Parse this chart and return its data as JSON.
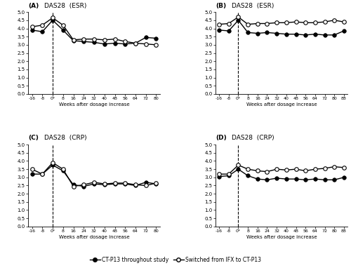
{
  "panel_A": {
    "title_label": "(A)",
    "title_rest": "  DAS28  (ESR)",
    "xticks": [
      -16,
      -8,
      0,
      8,
      16,
      24,
      32,
      40,
      48,
      56,
      64,
      72,
      80
    ],
    "xlabel": "Weeks after dosage increase",
    "ylim": [
      0,
      5
    ],
    "yticks": [
      0,
      0.5,
      1,
      1.5,
      2,
      2.5,
      3,
      3.5,
      4,
      4.5,
      5
    ],
    "solid_x": [
      -16,
      -8,
      0,
      8,
      16,
      24,
      32,
      40,
      48,
      56,
      64,
      72,
      80
    ],
    "solid_y": [
      3.9,
      3.8,
      4.5,
      3.9,
      3.25,
      3.2,
      3.15,
      3.05,
      3.1,
      3.05,
      3.1,
      3.45,
      3.4
    ],
    "open_x": [
      -16,
      -8,
      0,
      8,
      16,
      24,
      32,
      40,
      48,
      56,
      64,
      72,
      80
    ],
    "open_y": [
      4.1,
      4.2,
      4.65,
      4.2,
      3.3,
      3.35,
      3.35,
      3.3,
      3.35,
      3.2,
      3.1,
      3.05,
      3.0
    ]
  },
  "panel_B": {
    "title_label": "(B)",
    "title_rest": "  DAS28  (ESR)",
    "xticks": [
      -16,
      -8,
      0,
      8,
      16,
      24,
      32,
      40,
      48,
      56,
      64,
      72,
      80,
      88
    ],
    "xlabel": "Weeks after dosage increase",
    "ylim": [
      0,
      5
    ],
    "yticks": [
      0,
      0.5,
      1,
      1.5,
      2,
      2.5,
      3,
      3.5,
      4,
      4.5,
      5
    ],
    "solid_x": [
      -16,
      -8,
      0,
      8,
      16,
      24,
      32,
      40,
      48,
      56,
      64,
      72,
      80,
      88
    ],
    "solid_y": [
      3.9,
      3.85,
      4.5,
      3.75,
      3.7,
      3.75,
      3.7,
      3.65,
      3.65,
      3.6,
      3.65,
      3.6,
      3.6,
      3.85
    ],
    "open_x": [
      -16,
      -8,
      0,
      8,
      16,
      24,
      32,
      40,
      48,
      56,
      64,
      72,
      80,
      88
    ],
    "open_y": [
      4.25,
      4.3,
      4.7,
      4.25,
      4.3,
      4.3,
      4.35,
      4.35,
      4.4,
      4.35,
      4.35,
      4.4,
      4.5,
      4.4
    ]
  },
  "panel_C": {
    "title_label": "(C)",
    "title_rest": "  DAS28  (CRP)",
    "xticks": [
      -16,
      -8,
      0,
      8,
      16,
      24,
      32,
      40,
      48,
      56,
      64,
      72,
      80
    ],
    "xlabel": "Weeks after dosage increase",
    "ylim": [
      0,
      5
    ],
    "yticks": [
      0,
      0.5,
      1,
      1.5,
      2,
      2.5,
      3,
      3.5,
      4,
      4.5,
      5
    ],
    "solid_x": [
      -16,
      -8,
      0,
      8,
      16,
      24,
      32,
      40,
      48,
      56,
      64,
      72,
      80
    ],
    "solid_y": [
      3.2,
      3.2,
      3.75,
      3.4,
      2.55,
      2.45,
      2.6,
      2.55,
      2.6,
      2.6,
      2.5,
      2.7,
      2.6
    ],
    "open_x": [
      -16,
      -8,
      0,
      8,
      16,
      24,
      32,
      40,
      48,
      56,
      64,
      72,
      80
    ],
    "open_y": [
      3.5,
      3.2,
      3.9,
      3.5,
      2.45,
      2.55,
      2.7,
      2.6,
      2.65,
      2.65,
      2.55,
      2.5,
      2.65
    ]
  },
  "panel_D": {
    "title_label": "(D)",
    "title_rest": "  DAS28  (CRP)",
    "xticks": [
      -16,
      -8,
      0,
      8,
      16,
      24,
      32,
      40,
      48,
      56,
      64,
      72,
      80,
      88
    ],
    "xlabel": "Weeks after dosage increase",
    "ylim": [
      0,
      5
    ],
    "yticks": [
      0,
      0.5,
      1,
      1.5,
      2,
      2.5,
      3,
      3.5,
      4,
      4.5,
      5
    ],
    "solid_x": [
      -16,
      -8,
      0,
      8,
      16,
      24,
      32,
      40,
      48,
      56,
      64,
      72,
      80,
      88
    ],
    "solid_y": [
      3.05,
      3.1,
      3.5,
      3.1,
      2.9,
      2.85,
      2.95,
      2.9,
      2.9,
      2.85,
      2.9,
      2.85,
      2.85,
      3.0
    ],
    "open_x": [
      -16,
      -8,
      0,
      8,
      16,
      24,
      32,
      40,
      48,
      56,
      64,
      72,
      80,
      88
    ],
    "open_y": [
      3.2,
      3.2,
      3.75,
      3.5,
      3.4,
      3.35,
      3.5,
      3.45,
      3.5,
      3.4,
      3.5,
      3.55,
      3.65,
      3.6
    ]
  },
  "legend_solid": "CT-P13 throughout study",
  "legend_open": "Switched from IFX to CT-P13",
  "line_color": "black",
  "markersize": 4,
  "linewidth": 1.0,
  "dashed_line_x": 0
}
